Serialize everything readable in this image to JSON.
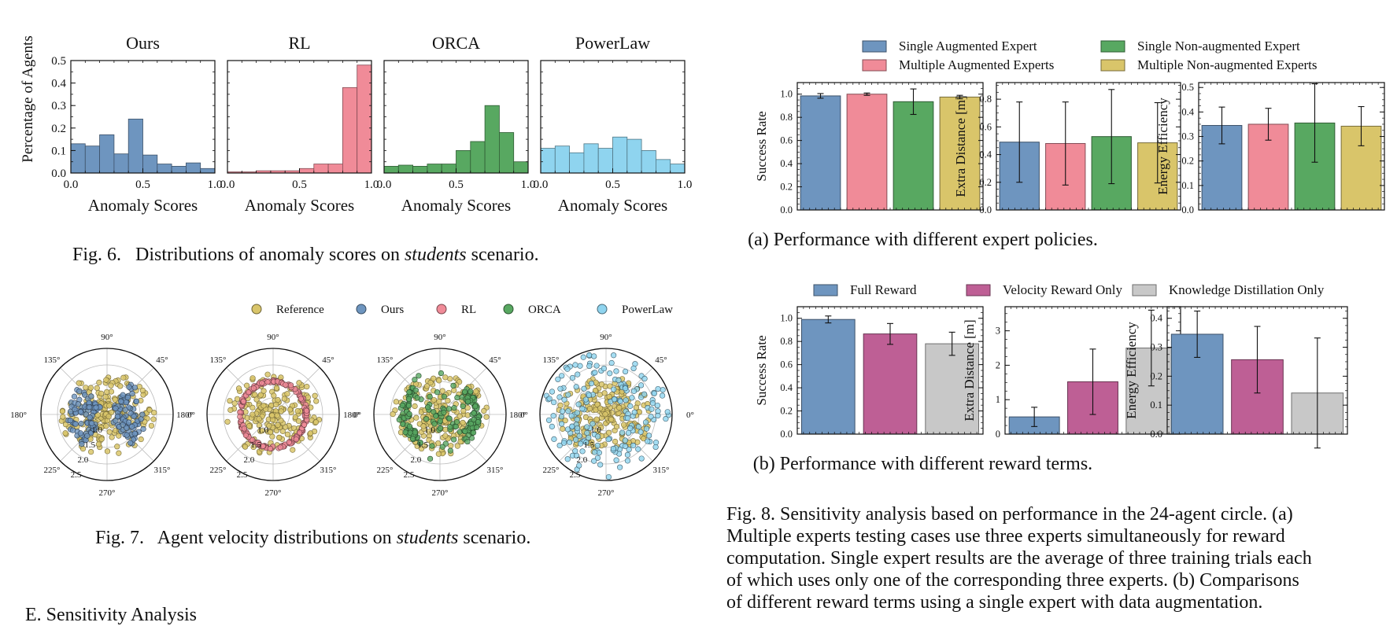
{
  "figures": {
    "fig6": {
      "caption_label": "Fig. 6.",
      "caption_pre": "Distributions of anomaly scores on ",
      "caption_em": "students",
      "caption_post": " scenario.",
      "ylabel": "Percentage of Agents",
      "xlabel": "Anomaly Scores"
    },
    "fig7": {
      "caption_label": "Fig. 7.",
      "caption_pre": "Agent velocity distributions on ",
      "caption_em": "students",
      "caption_post": " scenario.",
      "angle_labels": [
        "90°",
        "45°",
        "0°",
        "315°",
        "270°",
        "225°",
        "180°",
        "135°"
      ],
      "radius_labels": [
        "1.0",
        "1.5",
        "2.0",
        "2.5"
      ]
    },
    "fig8": {
      "sub_a": "(a) Performance with different expert policies.",
      "sub_b": "(b) Performance with different reward terms.",
      "caption_lines": [
        "Fig. 8.   Sensitivity analysis based on performance in the 24-agent circle. (a)",
        "Multiple experts testing cases use three experts simultaneously for reward",
        "computation. Single expert results are the average of three training trials each",
        "of which uses only one of the corresponding three experts. (b) Comparisons",
        "of different reward terms using a single expert with data augmentation."
      ]
    }
  },
  "section_heading": "E.  Sensitivity Analysis",
  "colors": {
    "ours": "#6e95bf",
    "rl": "#f08b98",
    "orca": "#58a861",
    "powerlaw": "#8fd4ef",
    "reference": "#d9c56a",
    "velocity": "#be5f95",
    "kd": "#c8c8c8",
    "multi_nonaug": "#d9c56a"
  },
  "chart_data": [
    {
      "type": "bar",
      "title": "Ours",
      "xlabel": "Anomaly Scores",
      "ylabel": "Percentage of Agents",
      "xlim": [
        0,
        1
      ],
      "ylim": [
        0,
        0.5
      ],
      "bins": 10,
      "yticks": [
        "0.0",
        "0.1",
        "0.2",
        "0.3",
        "0.4",
        "0.5"
      ],
      "xticks": [
        "0.0",
        "0.5",
        "1.0"
      ],
      "values": [
        0.13,
        0.12,
        0.17,
        0.085,
        0.24,
        0.08,
        0.04,
        0.03,
        0.045,
        0.02
      ]
    },
    {
      "type": "bar",
      "title": "RL",
      "xlabel": "Anomaly Scores",
      "xlim": [
        0,
        1
      ],
      "ylim": [
        0,
        0.5
      ],
      "bins": 10,
      "xticks": [
        "0.0",
        "0.5",
        "1.0"
      ],
      "values": [
        0.005,
        0.005,
        0.01,
        0.01,
        0.01,
        0.02,
        0.04,
        0.04,
        0.38,
        0.48
      ]
    },
    {
      "type": "bar",
      "title": "ORCA",
      "xlabel": "Anomaly Scores",
      "xlim": [
        0,
        1
      ],
      "ylim": [
        0,
        0.5
      ],
      "bins": 10,
      "xticks": [
        "0.0",
        "0.5",
        "1.0"
      ],
      "values": [
        0.03,
        0.035,
        0.03,
        0.04,
        0.04,
        0.1,
        0.14,
        0.3,
        0.18,
        0.05
      ]
    },
    {
      "type": "bar",
      "title": "PowerLaw",
      "xlabel": "Anomaly Scores",
      "xlim": [
        0,
        1
      ],
      "ylim": [
        0,
        0.5
      ],
      "bins": 10,
      "xticks": [
        "0.0",
        "0.5",
        "1.0"
      ],
      "values": [
        0.11,
        0.12,
        0.09,
        0.13,
        0.11,
        0.16,
        0.15,
        0.1,
        0.06,
        0.04
      ]
    },
    {
      "type": "scatter",
      "kind": "polar",
      "title": "",
      "legend": [
        "Reference",
        "Ours",
        "RL",
        "ORCA",
        "PowerLaw"
      ],
      "panels": [
        "Ours",
        "RL",
        "ORCA",
        "PowerLaw"
      ]
    },
    {
      "type": "bar",
      "group": "a",
      "legend": [
        "Single Augmented Expert",
        "Single Non-augmented Expert",
        "Multiple Augmented Experts",
        "Multiple Non-augmented Experts"
      ],
      "categories": [
        "Single Augmented Expert",
        "Multiple Augmented Experts",
        "Single Non-augmented Expert",
        "Multiple Non-augmented Experts"
      ],
      "panels": [
        {
          "ylabel": "Success Rate",
          "ylim": [
            0,
            1.1
          ],
          "yticks": [
            "0.0",
            "0.2",
            "0.4",
            "0.6",
            "0.8",
            "1.0"
          ],
          "values": [
            0.985,
            1.0,
            0.935,
            0.975
          ],
          "err": [
            0.02,
            0.01,
            0.11,
            0.015
          ]
        },
        {
          "ylabel": "Extra Distance [m]",
          "ylim": [
            0,
            0.92
          ],
          "yticks": [
            "0.0",
            "0.2",
            "0.4",
            "0.6",
            "0.8"
          ],
          "values": [
            0.49,
            0.48,
            0.53,
            0.485
          ],
          "err": [
            0.29,
            0.3,
            0.34,
            0.29
          ]
        },
        {
          "ylabel": "Energy Efficiency",
          "ylim": [
            0,
            0.52
          ],
          "yticks": [
            "0.0",
            "0.1",
            "0.2",
            "0.3",
            "0.4",
            "0.5"
          ],
          "values": [
            0.345,
            0.35,
            0.355,
            0.342
          ],
          "err": [
            0.075,
            0.065,
            0.16,
            0.08
          ]
        }
      ]
    },
    {
      "type": "bar",
      "group": "b",
      "legend": [
        "Full Reward",
        "Velocity Reward Only",
        "Knowledge Distillation Only"
      ],
      "categories": [
        "Full Reward",
        "Velocity Reward Only",
        "Knowledge Distillation Only"
      ],
      "panels": [
        {
          "ylabel": "Success Rate",
          "ylim": [
            0,
            1.1
          ],
          "yticks": [
            "0.0",
            "0.2",
            "0.4",
            "0.6",
            "0.8",
            "1.0"
          ],
          "values": [
            0.99,
            0.865,
            0.78
          ],
          "err": [
            0.03,
            0.09,
            0.1
          ]
        },
        {
          "ylabel": "Extra Distance [m]",
          "ylim": [
            0,
            3.7
          ],
          "yticks": [
            "0",
            "1",
            "2",
            "3"
          ],
          "values": [
            0.5,
            1.52,
            2.5
          ],
          "err": [
            0.28,
            0.95,
            1.1
          ]
        },
        {
          "ylabel": "Energy Efficiency",
          "ylim": [
            0,
            0.44
          ],
          "yticks": [
            "0.0",
            "0.1",
            "0.2",
            "0.3",
            "0.4"
          ],
          "values": [
            0.345,
            0.257,
            0.142
          ],
          "err": [
            0.08,
            0.115,
            0.19
          ]
        }
      ]
    }
  ]
}
